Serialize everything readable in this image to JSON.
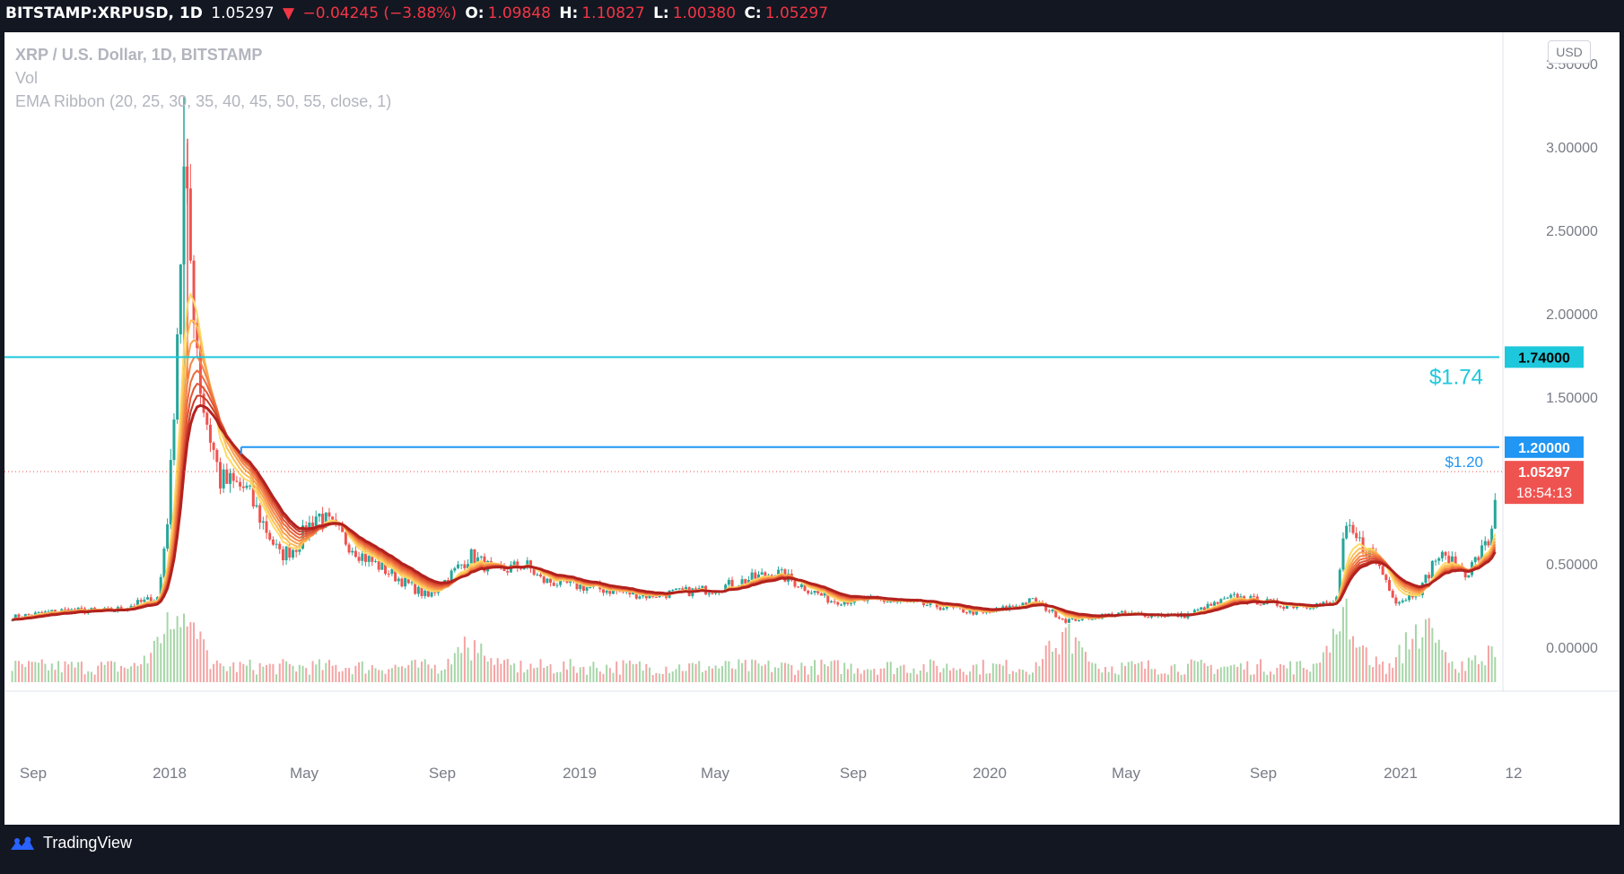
{
  "topbar": {
    "symbol": "BITSTAMP:XRPUSD, 1D",
    "last": "1.05297",
    "arrow": "▼",
    "change": "−0.04245 (−3.88%)",
    "open_label": "O:",
    "open": "1.09848",
    "high_label": "H:",
    "high": "1.10827",
    "low_label": "L:",
    "low": "1.00380",
    "close_label": "C:",
    "close": "1.05297"
  },
  "legend": {
    "title": "XRP / U.S. Dollar, 1D, BITSTAMP",
    "volume": "Vol",
    "ema": "EMA Ribbon (20, 25, 30, 35, 40, 45, 50, 55, close, 1)"
  },
  "currency_button": "USD",
  "brand": "TradingView",
  "colors": {
    "up": "#26a69a",
    "down": "#ef5350",
    "cyan_line": "#1ec8dc",
    "blue_line": "#2196f3",
    "price_tag": "#ef5350",
    "ema_dark": "#b2221e",
    "ema_light": "#ffd966"
  },
  "chart_data": {
    "type": "line",
    "instrument": "XRP / U.S. Dollar, 1D, BITSTAMP",
    "x_ticks": [
      "Sep",
      "2018",
      "May",
      "Sep",
      "2019",
      "May",
      "Sep",
      "2020",
      "May",
      "Sep",
      "2021",
      "12"
    ],
    "y_ticks": [
      "3.50000",
      "3.00000",
      "2.50000",
      "2.00000",
      "1.50000",
      "0.50000",
      "0.00000"
    ],
    "ylim": [
      -0.2,
      3.6
    ],
    "series": [
      {
        "name": "",
        "x": [
          "2017-08-01",
          "2017-09-15",
          "2017-11-01",
          "2017-12-12",
          "2017-12-22",
          "2018-01-04",
          "2018-01-20",
          "2018-02-06",
          "2018-03-01",
          "2018-04-01",
          "2018-04-15",
          "2018-05-05",
          "2018-06-15",
          "2018-08-14",
          "2018-09-21",
          "2018-10-15",
          "2018-11-10",
          "2018-11-25",
          "2019-01-15",
          "2019-03-01",
          "2019-05-01",
          "2019-06-25",
          "2019-08-15",
          "2019-10-01",
          "2019-11-15",
          "2020-01-01",
          "2020-02-15",
          "2020-03-15",
          "2020-05-01",
          "2020-07-01",
          "2020-08-15",
          "2020-10-01",
          "2020-11-15",
          "2020-11-24",
          "2020-12-20",
          "2021-01-10",
          "2021-02-01",
          "2021-02-15",
          "2021-03-15",
          "2021-04-05",
          "2021-04-11"
        ],
        "y": [
          0.18,
          0.22,
          0.22,
          0.3,
          0.9,
          2.8,
          1.5,
          1.0,
          0.95,
          0.55,
          0.6,
          0.8,
          0.55,
          0.3,
          0.55,
          0.45,
          0.5,
          0.4,
          0.35,
          0.31,
          0.35,
          0.45,
          0.28,
          0.28,
          0.25,
          0.2,
          0.28,
          0.16,
          0.2,
          0.19,
          0.3,
          0.25,
          0.26,
          0.7,
          0.55,
          0.27,
          0.35,
          0.55,
          0.45,
          0.65,
          1.05
        ]
      }
    ],
    "volume": [
      {
        "x": "2017-12-22",
        "v": 0.6
      },
      {
        "x": "2018-01-04",
        "v": 1.0
      },
      {
        "x": "2018-09-21",
        "v": 0.5
      },
      {
        "x": "2020-03-15",
        "v": 0.7
      },
      {
        "x": "2020-11-24",
        "v": 1.0
      },
      {
        "x": "2021-02-01",
        "v": 0.9
      },
      {
        "x": "2021-04-11",
        "v": 0.45
      }
    ],
    "max_spike_high": 3.3,
    "horizontal_lines": [
      {
        "value": 1.74,
        "label": "1.74000",
        "annotation": "$1.74"
      },
      {
        "value": 1.2,
        "label": "1.20000",
        "annotation": "$1.20",
        "start_x": "2018-02-25"
      }
    ],
    "last_price": {
      "value": 1.05297,
      "label": "1.05297",
      "countdown": "18:54:13"
    },
    "ema_ribbon": {
      "periods": [
        20,
        25,
        30,
        35,
        40,
        45,
        50,
        55
      ],
      "source": "close"
    }
  }
}
